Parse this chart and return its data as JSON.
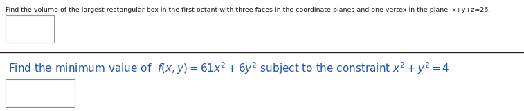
{
  "line1_text": "Find the volume of the largest rectangular box in the first octant with three faces in the coordinate planes and one vertex in the plane  x+y+z=26.",
  "line1_fontsize": 6.8,
  "line2_text": "Find the minimum value of  $f(x,y)=61x^2+6y^2$ subject to the constraint $x^2+y^2=4$",
  "line2_fontsize": 11.0,
  "bg_color": "#ffffff",
  "text_color_black": "#1a1a1a",
  "text_color_blue": "#2255aa",
  "box1_edge_color": "#999999",
  "box2_edge_color": "#888888",
  "divider_color": "#222222",
  "fig_width": 7.57,
  "fig_height": 1.61,
  "dpi": 100
}
